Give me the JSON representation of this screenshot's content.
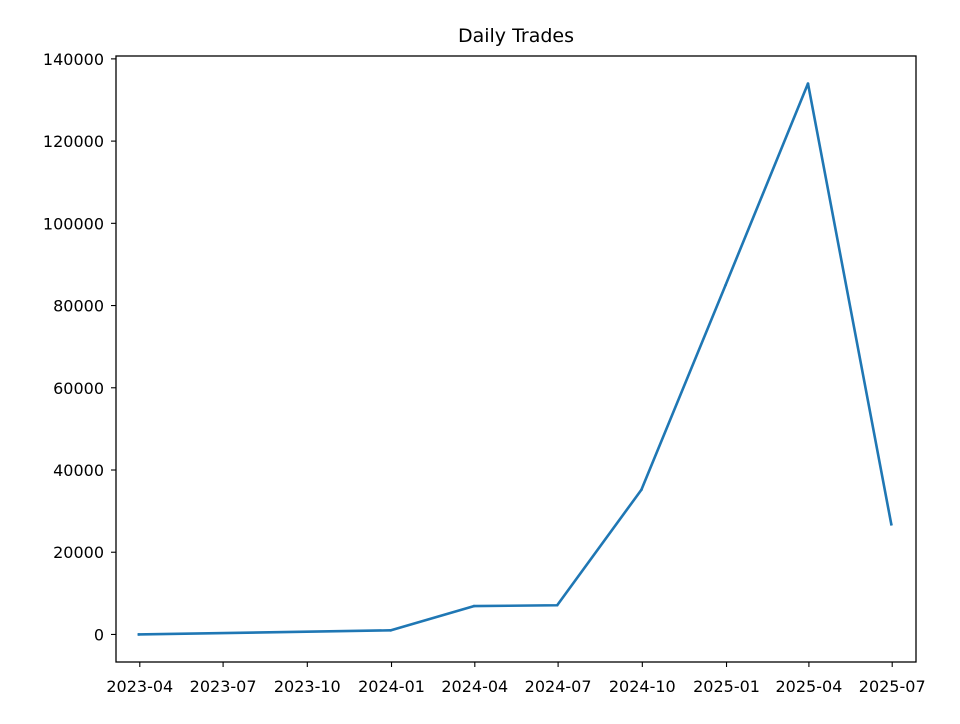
{
  "chart_data": {
    "type": "line",
    "title": "Daily Trades",
    "xlabel": "",
    "ylabel": "",
    "x_axis_type": "date",
    "xlim": [
      "2023-03-06",
      "2025-07-27"
    ],
    "ylim": [
      -6700,
      140700
    ],
    "x_ticks": [
      "2023-04-01",
      "2023-07-01",
      "2023-10-01",
      "2024-01-01",
      "2024-04-01",
      "2024-07-01",
      "2024-10-01",
      "2025-01-01",
      "2025-04-01",
      "2025-07-01"
    ],
    "x_tick_labels": [
      "2023-04",
      "2023-07",
      "2023-10",
      "2024-01",
      "2024-04",
      "2024-07",
      "2024-10",
      "2025-01",
      "2025-04",
      "2025-07"
    ],
    "y_ticks": [
      0,
      20000,
      40000,
      60000,
      80000,
      100000,
      120000,
      140000
    ],
    "y_tick_labels": [
      "0",
      "20000",
      "40000",
      "60000",
      "80000",
      "100000",
      "120000",
      "140000"
    ],
    "grid": false,
    "legend": "none",
    "series": [
      {
        "color": "#1f77b4",
        "x": [
          "2023-03-31",
          "2023-12-31",
          "2024-03-31",
          "2024-06-30",
          "2024-09-30",
          "2024-12-31",
          "2025-03-31",
          "2025-06-30"
        ],
        "y": [
          0,
          1000,
          6900,
          7100,
          35200,
          85000,
          134000,
          26800
        ]
      }
    ]
  }
}
